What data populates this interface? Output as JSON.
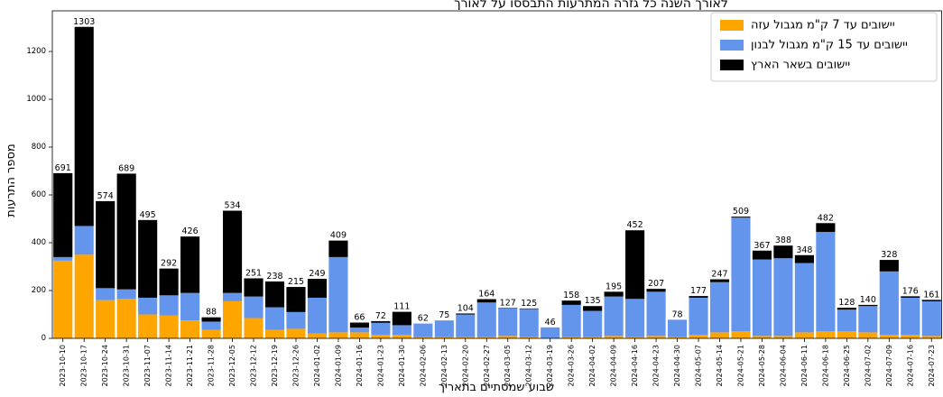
{
  "chart_data": {
    "type": "bar",
    "stacked": true,
    "title": "לאורך השנה כל גזרה המתרעות התבססו על לאורך",
    "xlabel": "שבוע שמסתיים בתאריך",
    "ylabel": "מספר התרעות",
    "ylim": [
      0,
      1370
    ],
    "yticks": [
      0,
      200,
      400,
      600,
      800,
      1000,
      1200
    ],
    "legend_position": "top-right",
    "categories": [
      "2023-10-10",
      "2023-10-17",
      "2023-10-24",
      "2023-10-31",
      "2023-11-07",
      "2023-11-14",
      "2023-11-21",
      "2023-11-28",
      "2023-12-05",
      "2023-12-12",
      "2023-12-19",
      "2023-12-26",
      "2024-01-02",
      "2024-01-09",
      "2024-01-16",
      "2024-01-23",
      "2024-01-30",
      "2024-02-06",
      "2024-02-13",
      "2024-02-20",
      "2024-02-27",
      "2024-03-05",
      "2024-03-12",
      "2024-03-19",
      "2024-03-26",
      "2024-04-02",
      "2024-04-09",
      "2024-04-16",
      "2024-04-23",
      "2024-04-30",
      "2024-05-07",
      "2024-05-14",
      "2024-05-21",
      "2024-05-28",
      "2024-06-04",
      "2024-06-11",
      "2024-06-18",
      "2024-06-25",
      "2024-07-02",
      "2024-07-09",
      "2024-07-16",
      "2024-07-23"
    ],
    "totals": [
      691,
      1303,
      574,
      689,
      495,
      292,
      426,
      88,
      534,
      251,
      238,
      215,
      249,
      409,
      66,
      72,
      111,
      62,
      75,
      104,
      164,
      127,
      125,
      46,
      158,
      135,
      195,
      452,
      207,
      78,
      177,
      247,
      509,
      367,
      388,
      348,
      482,
      128,
      140,
      328,
      176,
      161
    ],
    "series": [
      {
        "name": "יישובים עד 7 ק\"מ מגבול עזה",
        "color": "#FFA500",
        "values": [
          325,
          350,
          160,
          165,
          100,
          95,
          75,
          35,
          155,
          85,
          35,
          40,
          20,
          25,
          25,
          15,
          15,
          5,
          5,
          5,
          5,
          10,
          5,
          0,
          5,
          5,
          10,
          5,
          10,
          5,
          15,
          25,
          30,
          10,
          10,
          25,
          30,
          30,
          25,
          15,
          15,
          10
        ]
      },
      {
        "name": "יישובים עד 15 ק\"מ מגבול לבנון",
        "color": "#6495ED",
        "values": [
          15,
          120,
          50,
          40,
          70,
          85,
          115,
          35,
          35,
          90,
          95,
          70,
          150,
          315,
          20,
          50,
          40,
          57,
          70,
          95,
          145,
          115,
          118,
          46,
          135,
          110,
          165,
          160,
          185,
          73,
          155,
          210,
          475,
          320,
          325,
          290,
          415,
          90,
          110,
          265,
          155,
          145
        ]
      },
      {
        "name": "יישובים בשאר הארץ",
        "color": "#000000",
        "values": [
          351,
          833,
          364,
          484,
          325,
          112,
          236,
          18,
          344,
          76,
          108,
          105,
          79,
          69,
          21,
          7,
          56,
          0,
          0,
          4,
          14,
          2,
          2,
          0,
          18,
          20,
          20,
          287,
          12,
          0,
          7,
          12,
          4,
          37,
          53,
          33,
          37,
          8,
          5,
          48,
          6,
          6
        ]
      }
    ]
  }
}
